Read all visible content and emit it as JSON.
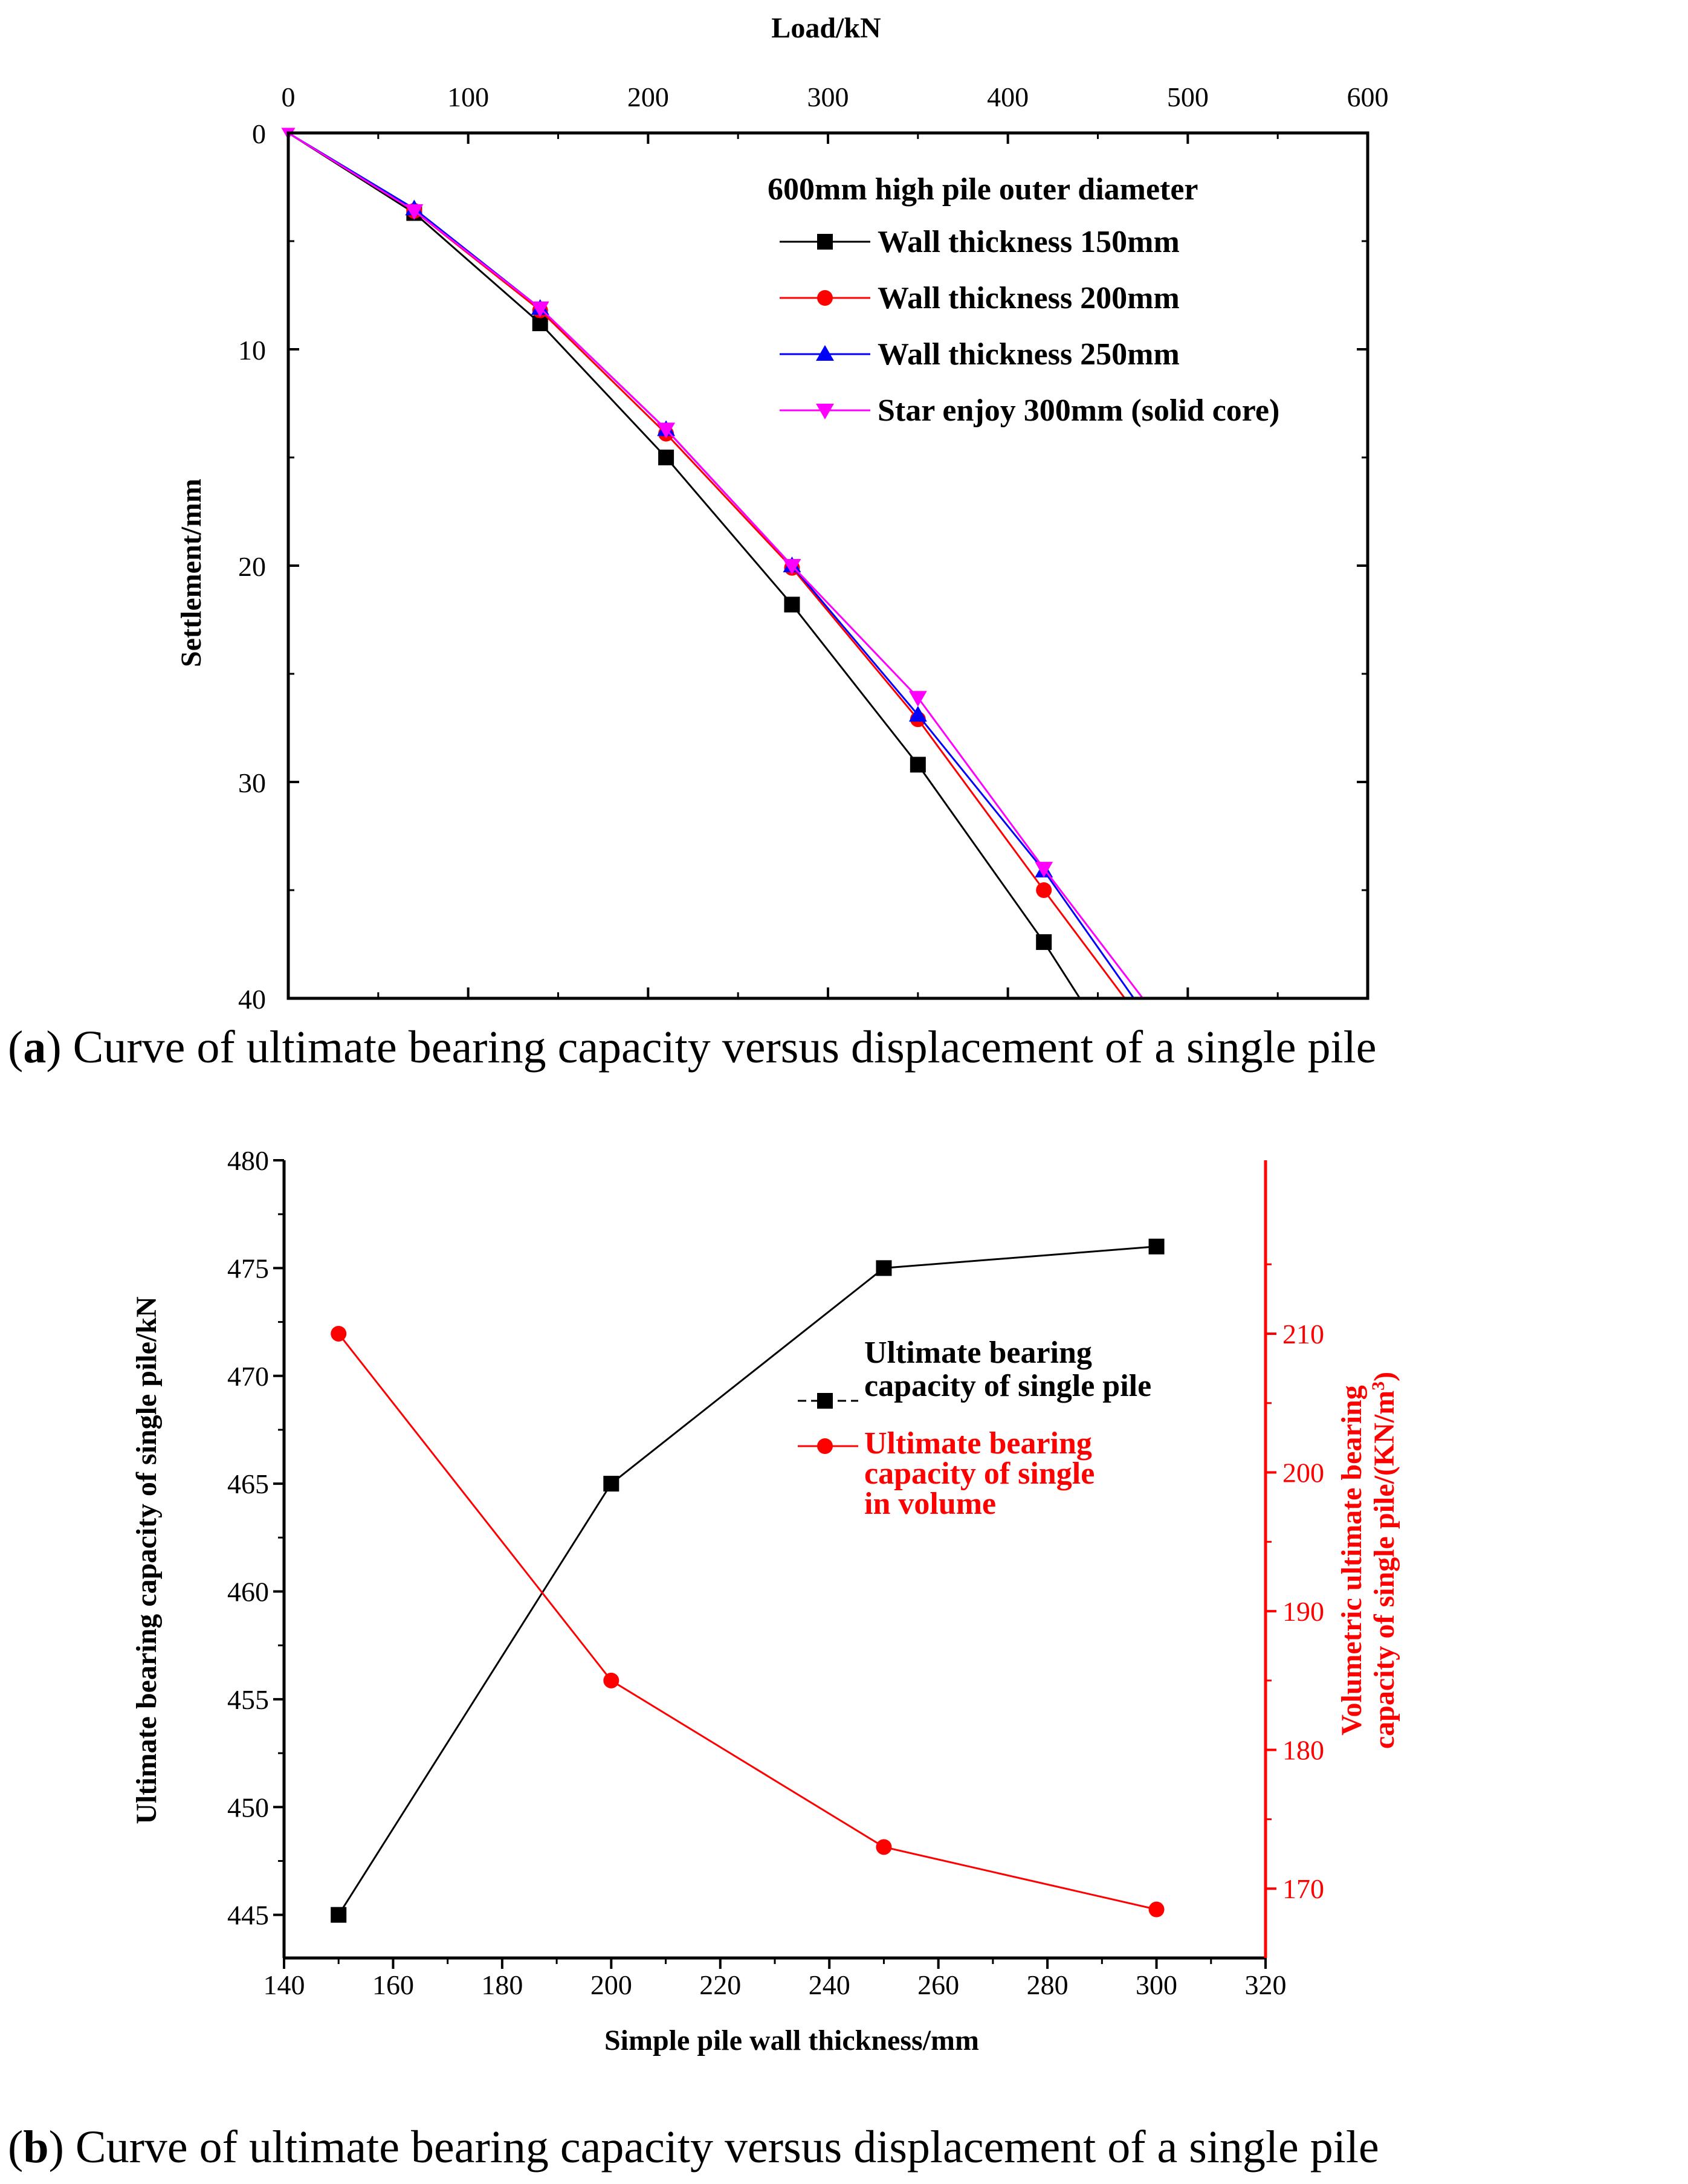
{
  "chart_data": [
    {
      "type": "line",
      "xlabel": "Load/kN",
      "ylabel": "Settlement/mm",
      "xlim": [
        0,
        600
      ],
      "ylim": [
        0,
        40
      ],
      "x_axis_position": "top",
      "y_inverted": true,
      "xticks": [
        "0",
        "100",
        "200",
        "300",
        "400",
        "500",
        "600"
      ],
      "yticks": [
        "0",
        "10",
        "20",
        "30",
        "40"
      ],
      "legend_title": "600mm high pile outer diameter",
      "legend_position": "top-right",
      "series": [
        {
          "name": "Wall thickness 150mm",
          "color": "#000000",
          "marker": "square",
          "points": [
            [
              0,
              0
            ],
            [
              70,
              3.7
            ],
            [
              140,
              8.8
            ],
            [
              210,
              15
            ],
            [
              280,
              21.8
            ],
            [
              350,
              29.2
            ],
            [
              420,
              37.4
            ]
          ],
          "extension": [
            [
              440,
              40
            ]
          ]
        },
        {
          "name": "Wall thickness 200mm",
          "color": "#ff0000",
          "marker": "circle",
          "points": [
            [
              0,
              0
            ],
            [
              70,
              3.6
            ],
            [
              140,
              8.2
            ],
            [
              210,
              13.9
            ],
            [
              280,
              20.1
            ],
            [
              350,
              27.1
            ],
            [
              420,
              35
            ]
          ],
          "extension": [
            [
              465,
              40
            ]
          ]
        },
        {
          "name": "Wall thickness 250mm",
          "color": "#0000ff",
          "marker": "triangle-up",
          "points": [
            [
              0,
              0
            ],
            [
              70,
              3.5
            ],
            [
              140,
              8.1
            ],
            [
              210,
              13.7
            ],
            [
              280,
              20
            ],
            [
              350,
              26.9
            ],
            [
              420,
              34.1
            ]
          ],
          "extension": [
            [
              470,
              40
            ]
          ]
        },
        {
          "name": "Star enjoy 300mm (solid core)",
          "color": "#ff00ff",
          "marker": "triangle-down",
          "points": [
            [
              0,
              0
            ],
            [
              70,
              3.6
            ],
            [
              140,
              8.1
            ],
            [
              210,
              13.7
            ],
            [
              280,
              20
            ],
            [
              350,
              26.1
            ],
            [
              420,
              34
            ]
          ],
          "extension": [
            [
              475,
              40
            ]
          ]
        }
      ],
      "caption_label": "a",
      "caption": " Curve of ultimate bearing capacity versus displacement of a single pile"
    },
    {
      "type": "line",
      "xlabel": "Simple pile wall thickness/mm",
      "ylabel": "Ultimate bearing capacity of single pile/kN",
      "ylabel_right": "Volumetric ultimate bearing capacity of single pile/(KN/m",
      "ylabel_right_line1": "Volumetric ultimate bearing",
      "ylabel_right_line2": "capacity of single pile/(KN/m",
      "ylabel_right_sup": "3",
      "ylabel_right_end": ")",
      "xlim": [
        140,
        320
      ],
      "ylim": [
        443,
        480
      ],
      "ylim_right": [
        165,
        222.5
      ],
      "xticks": [
        "140",
        "160",
        "180",
        "200",
        "220",
        "240",
        "260",
        "280",
        "300",
        "320"
      ],
      "yticks": [
        "445",
        "450",
        "455",
        "460",
        "465",
        "470",
        "475",
        "480"
      ],
      "yticks_right": [
        "170",
        "180",
        "190",
        "200",
        "210"
      ],
      "legend_position": "center-right",
      "series": [
        {
          "name": "Ultimate bearing capacity of single pile",
          "name_line1": "Ultimate bearing",
          "name_line2": "capacity of single pile",
          "color": "#000000",
          "marker": "square",
          "axis": "left",
          "x": [
            150,
            200,
            250,
            300
          ],
          "y": [
            445,
            465,
            475,
            476
          ]
        },
        {
          "name": "Ultimate bearing capacity of single in volume",
          "name_line1": "Ultimate bearing",
          "name_line2": "capacity of single",
          "name_line3": "in volume",
          "color": "#ff0000",
          "marker": "circle",
          "axis": "right",
          "x": [
            150,
            200,
            250,
            300
          ],
          "y": [
            210,
            185,
            173,
            168.5
          ]
        }
      ],
      "caption_label": "b",
      "caption": " Curve of ultimate bearing capacity versus displacement of a single pile"
    }
  ]
}
